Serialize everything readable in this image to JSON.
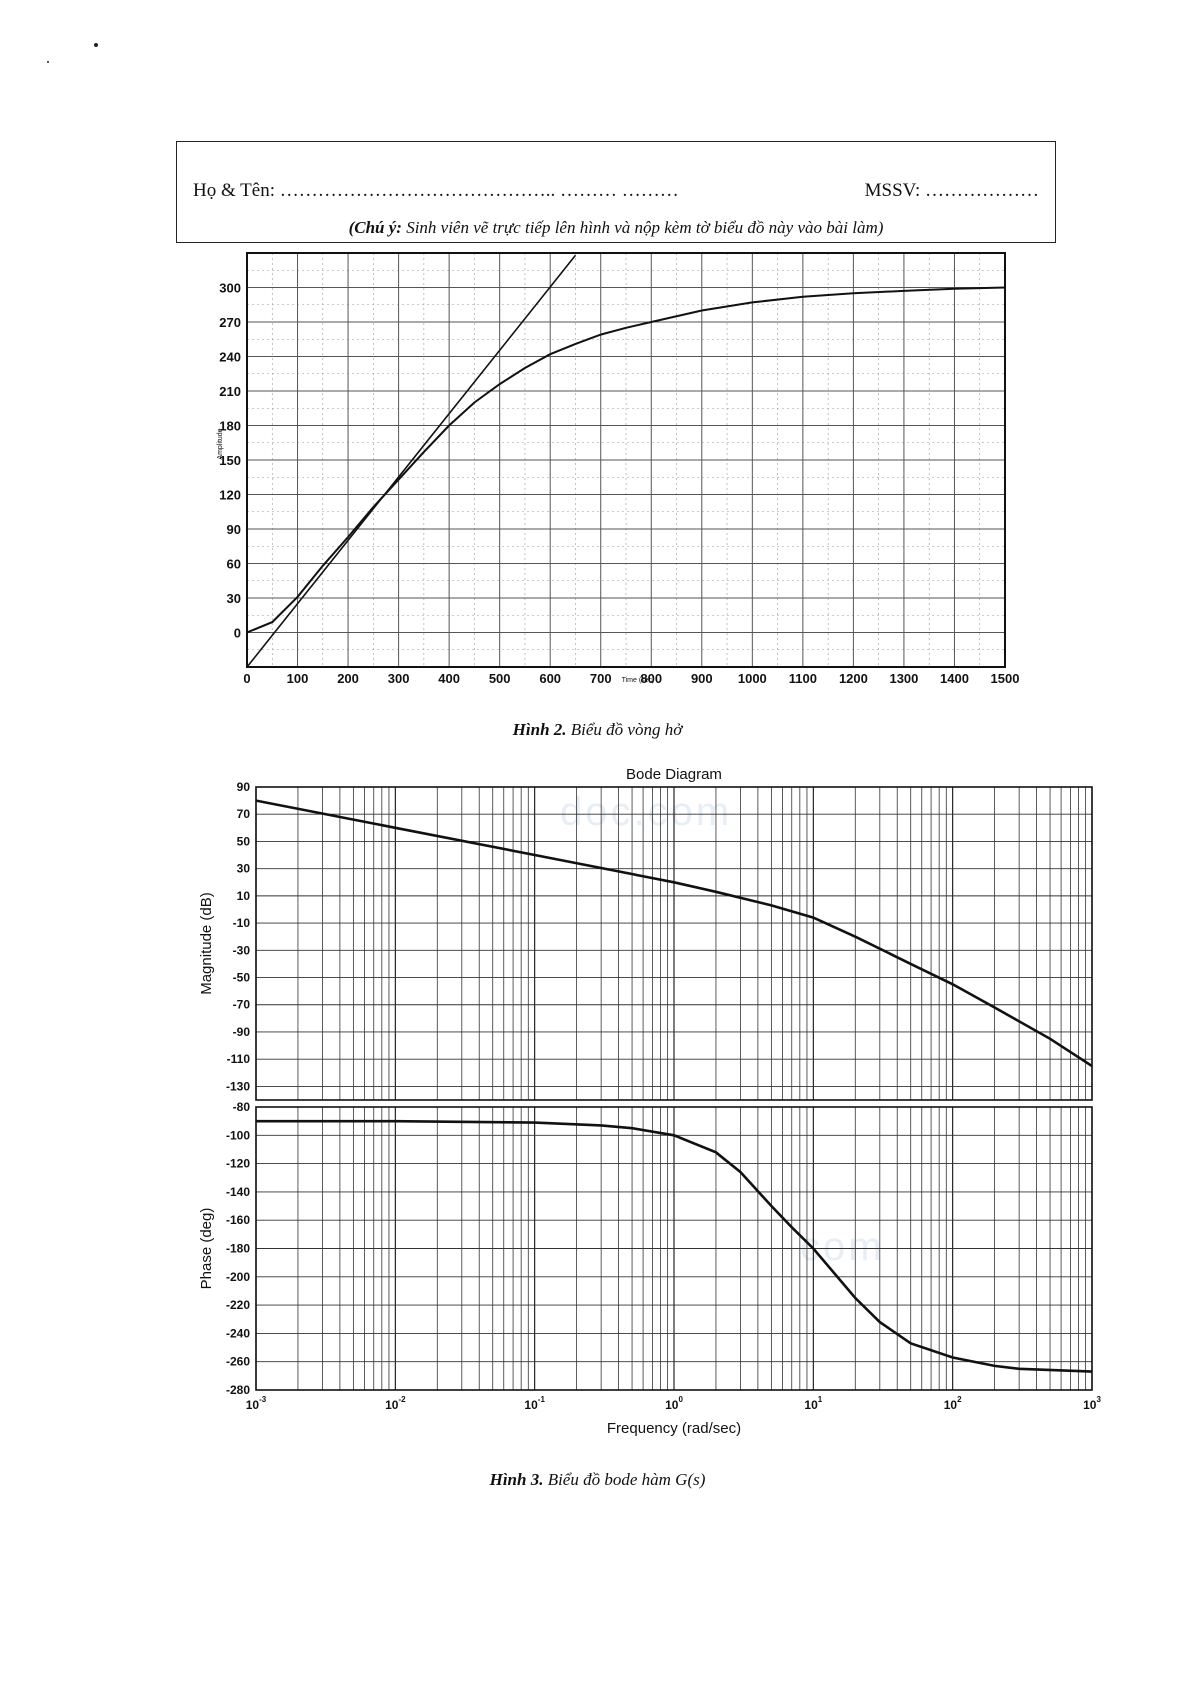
{
  "header": {
    "name_label": "Họ & Tên: …………………………………….. ……… ………",
    "id_label": "MSSV: ………………",
    "note_prefix": "(Chú ý:",
    "note_text": " Sinh viên vẽ trực tiếp lên hình và nộp kèm tờ biểu đồ này vào bài làm)"
  },
  "captions": {
    "fig2_label": "Hình 2.",
    "fig2_text": " Biểu đồ vòng hở",
    "fig3_label": "Hình 3.",
    "fig3_text": " Biểu đồ bode hàm G(s)"
  },
  "watermarks": [
    "doc.com",
    "com"
  ],
  "chart_data": [
    {
      "type": "line",
      "title": "",
      "xlabel": "Time (sec)",
      "ylabel": "Amplitude",
      "xlim": [
        0,
        1500
      ],
      "ylim": [
        -30,
        330
      ],
      "xticks": [
        0,
        100,
        200,
        300,
        400,
        500,
        600,
        700,
        800,
        900,
        1000,
        1100,
        1200,
        1300,
        1400,
        1500
      ],
      "yticks": [
        0,
        30,
        60,
        90,
        120,
        150,
        180,
        210,
        240,
        270,
        300
      ],
      "grid": true,
      "series": [
        {
          "x": [
            0,
            50,
            100,
            150,
            200,
            250,
            300,
            350,
            400,
            450,
            500,
            550,
            600,
            650,
            700,
            750,
            800,
            900,
            1000,
            1100,
            1200,
            1300,
            1400,
            1500
          ],
          "values": [
            0,
            9,
            31,
            58,
            83,
            109,
            133,
            157,
            180,
            200,
            216,
            230,
            242,
            251,
            259,
            265,
            270,
            280,
            287,
            292,
            295,
            297,
            299,
            300
          ]
        },
        {
          "x": [
            0,
            650
          ],
          "values": [
            -30,
            328
          ]
        }
      ]
    },
    {
      "type": "line",
      "title": "Bode Diagram",
      "xlabel": "Frequency  (rad/sec)",
      "ylabel": "Magnitude (dB)",
      "xscale": "log",
      "xlim": [
        0.001,
        1000
      ],
      "ylim": [
        -140,
        90
      ],
      "xtick_bases": [
        "10",
        "10",
        "10",
        "10",
        "10",
        "10",
        "10"
      ],
      "xtick_exps": [
        "-3",
        "-2",
        "-1",
        "0",
        "1",
        "2",
        "3"
      ],
      "yticks": [
        90,
        70,
        50,
        30,
        10,
        -10,
        -30,
        -50,
        -70,
        -90,
        -110,
        -130
      ],
      "grid": true,
      "series": [
        {
          "x": [
            0.001,
            0.01,
            0.1,
            1,
            2,
            5,
            10,
            20,
            50,
            100,
            200,
            500,
            1000
          ],
          "values": [
            80,
            60,
            40,
            20,
            13,
            3,
            -6,
            -20,
            -40,
            -55,
            -72,
            -95,
            -115
          ]
        }
      ]
    },
    {
      "type": "line",
      "title": "",
      "xlabel": "Frequency  (rad/sec)",
      "ylabel": "Phase (deg)",
      "xscale": "log",
      "xlim": [
        0.001,
        1000
      ],
      "ylim": [
        -280,
        -80
      ],
      "yticks": [
        -80,
        -100,
        -120,
        -140,
        -160,
        -180,
        -200,
        -220,
        -240,
        -260,
        -280
      ],
      "grid": true,
      "series": [
        {
          "x": [
            0.001,
            0.01,
            0.1,
            0.3,
            0.5,
            1,
            2,
            3,
            5,
            7,
            10,
            20,
            30,
            50,
            100,
            200,
            300,
            1000
          ],
          "values": [
            -90,
            -90,
            -91,
            -93,
            -95,
            -100,
            -112,
            -126,
            -150,
            -165,
            -180,
            -215,
            -232,
            -247,
            -257,
            -263,
            -265,
            -267
          ]
        }
      ]
    }
  ]
}
